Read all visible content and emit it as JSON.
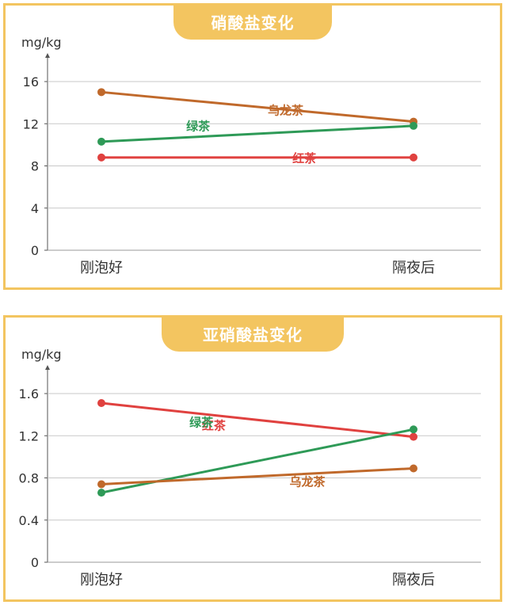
{
  "charts": [
    {
      "title": "硝酸盐变化",
      "unit": "mg/kg",
      "chart_data": {
        "type": "line",
        "title": "硝酸盐变化",
        "ylabel": "mg/kg",
        "categories": [
          "刚泡好",
          "隔夜后"
        ],
        "ylim": [
          0,
          16
        ],
        "yticks": [
          "0",
          "4",
          "8",
          "12",
          "16"
        ],
        "yticks_values": [
          0,
          4,
          8,
          12,
          16
        ],
        "grid": true,
        "series": [
          {
            "name": "乌龙茶",
            "values": [
              15.0,
              12.2
            ],
            "color": "#c0692b"
          },
          {
            "name": "绿茶",
            "values": [
              10.3,
              11.8
            ],
            "color": "#2e9a57"
          },
          {
            "name": "红茶",
            "values": [
              8.8,
              8.8
            ],
            "color": "#e0413f"
          }
        ]
      }
    },
    {
      "title": "亚硝酸盐变化",
      "unit": "mg/kg",
      "chart_data": {
        "type": "line",
        "title": "亚硝酸盐变化",
        "ylabel": "mg/kg",
        "categories": [
          "刚泡好",
          "隔夜后"
        ],
        "ylim": [
          0,
          1.6
        ],
        "yticks": [
          "0",
          "0.4",
          "0.8",
          "1.2",
          "1.6"
        ],
        "yticks_values": [
          0,
          0.4,
          0.8,
          1.2,
          1.6
        ],
        "grid": true,
        "series": [
          {
            "name": "红茶",
            "values": [
              1.51,
              1.19
            ],
            "color": "#e0413f"
          },
          {
            "name": "绿茶",
            "values": [
              0.66,
              1.26
            ],
            "color": "#2e9a57"
          },
          {
            "name": "乌龙茶",
            "values": [
              0.74,
              0.89
            ],
            "color": "#c0692b"
          }
        ]
      }
    }
  ]
}
